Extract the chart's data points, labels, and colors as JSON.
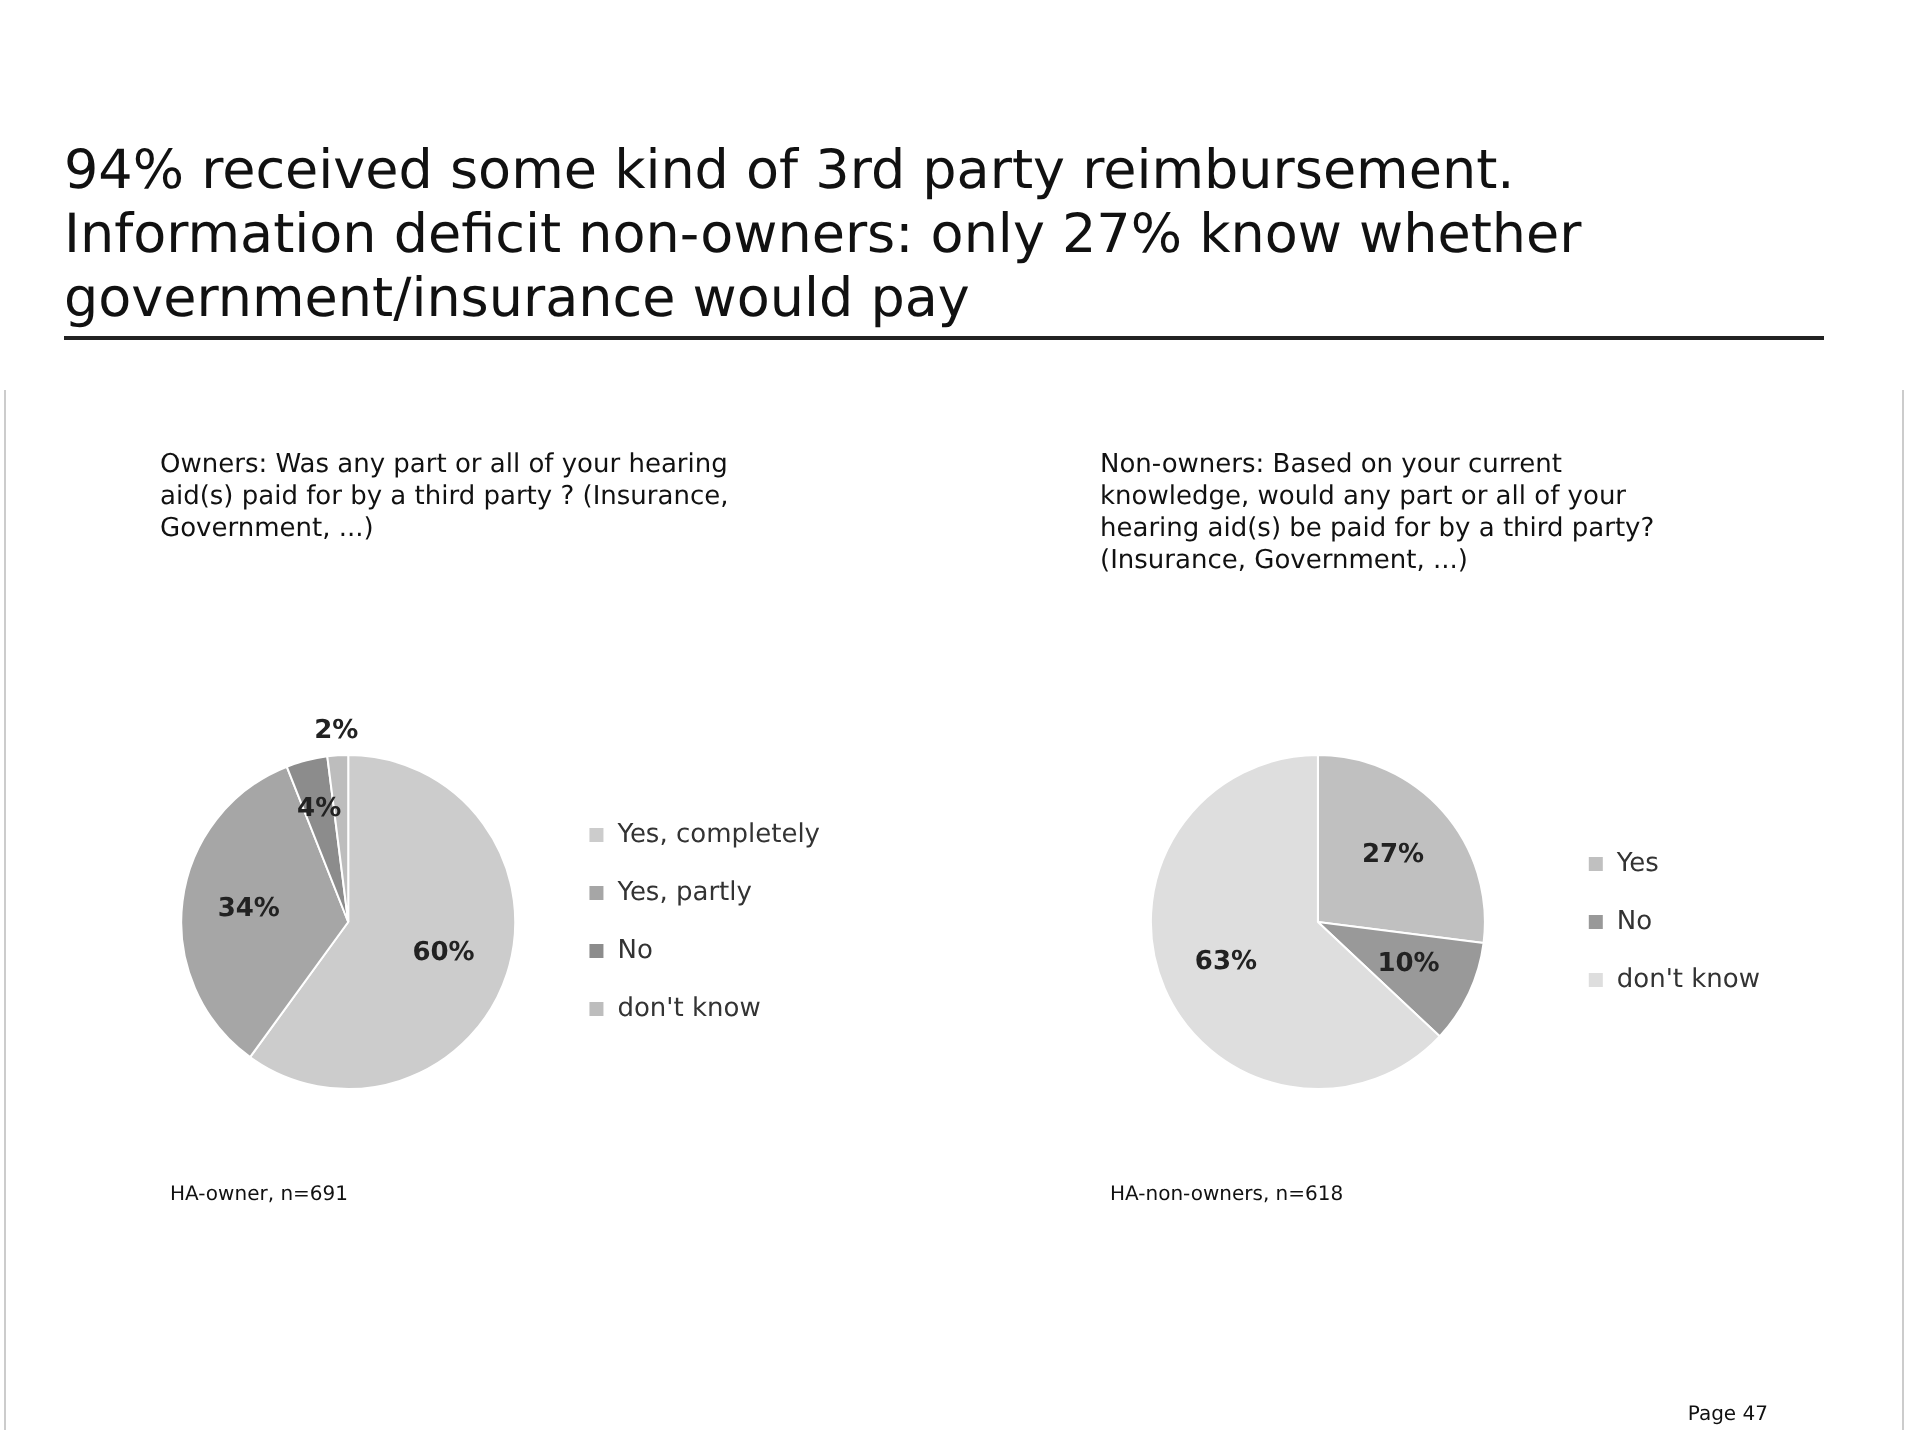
{
  "chart_data": [
    {
      "type": "pie",
      "title": "94% received some kind of 3rd party reimbursement. Information deficit non-owners: only 27% know whether government/insurance would pay",
      "subtitle": "Owners: Was any part or all of your hearing aid(s) paid for by a third party ? (Insurance, Government, ...)",
      "categories": [
        "Yes, completely",
        "Yes, partly",
        "No",
        "don't know"
      ],
      "values": [
        60,
        34,
        4,
        2
      ],
      "colors": [
        "#cccccc",
        "#a6a6a6",
        "#8c8c8c",
        "#bdbdbd"
      ],
      "value_labels": [
        "60%",
        "34%",
        "4%",
        "2%"
      ],
      "legend": "right",
      "annotations": [
        "HA-owner, n=691"
      ]
    },
    {
      "type": "pie",
      "subtitle": "Non-owners: Based on your current knowledge, would any part or all of your hearing aid(s) be paid for by a third party? (Insurance, Government, ...)",
      "categories": [
        "Yes",
        "No",
        "don't know"
      ],
      "values": [
        27,
        10,
        63
      ],
      "colors": [
        "#c0c0c0",
        "#999999",
        "#dedede"
      ],
      "value_labels": [
        "27%",
        "10%",
        "63%"
      ],
      "legend": "right",
      "annotations": [
        "HA-non-owners, n=618",
        "Page 47"
      ]
    }
  ]
}
